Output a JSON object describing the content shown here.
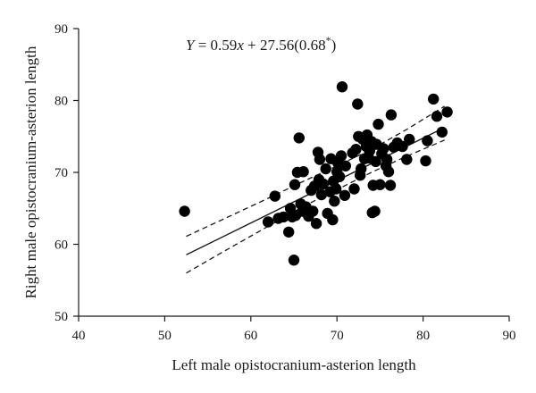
{
  "chart_data": {
    "type": "scatter",
    "xlabel": "Left male opistocranium-asterion length",
    "ylabel": "Right male opistocranium-asterion length",
    "annotation": "Y = 0.59x + 27.56(0.68*)",
    "xlim": [
      40,
      90
    ],
    "ylim": [
      50,
      90
    ],
    "xticks": [
      40,
      50,
      60,
      70,
      80,
      90
    ],
    "yticks": [
      50,
      60,
      70,
      80,
      90
    ],
    "grid": false,
    "regression": {
      "slope": 0.59,
      "intercept": 27.56,
      "x_range": [
        52.5,
        82.5
      ],
      "style": "solid"
    },
    "confidence_band": {
      "upper": [
        [
          52.5,
          61.1
        ],
        [
          57,
          63.6
        ],
        [
          62,
          66.4
        ],
        [
          66,
          68.7
        ],
        [
          70,
          70.9
        ],
        [
          74,
          73.2
        ],
        [
          78,
          75.9
        ],
        [
          82.5,
          79.2
        ]
      ],
      "lower": [
        [
          52.5,
          56.0
        ],
        [
          57,
          59.1
        ],
        [
          62,
          62.5
        ],
        [
          66,
          65.2
        ],
        [
          70,
          67.6
        ],
        [
          74,
          70.0
        ],
        [
          78,
          72.2
        ],
        [
          82.5,
          74.5
        ]
      ],
      "style": "dashed"
    },
    "series": [
      {
        "points": [
          [
            52.3,
            64.6
          ],
          [
            62.0,
            63.1
          ],
          [
            62.8,
            66.7
          ],
          [
            63.2,
            63.6
          ],
          [
            63.8,
            63.8
          ],
          [
            64.4,
            61.7
          ],
          [
            64.6,
            65.0
          ],
          [
            64.8,
            63.8
          ],
          [
            65.0,
            57.8
          ],
          [
            65.2,
            64.0
          ],
          [
            65.1,
            68.3
          ],
          [
            65.4,
            70.0
          ],
          [
            65.6,
            74.8
          ],
          [
            65.8,
            65.6
          ],
          [
            66.0,
            64.6
          ],
          [
            66.1,
            70.1
          ],
          [
            66.4,
            65.2
          ],
          [
            66.7,
            63.9
          ],
          [
            67.0,
            67.5
          ],
          [
            67.2,
            64.6
          ],
          [
            67.4,
            68.1
          ],
          [
            67.6,
            62.9
          ],
          [
            67.8,
            72.8
          ],
          [
            67.9,
            69.0
          ],
          [
            68.0,
            71.8
          ],
          [
            68.2,
            66.9
          ],
          [
            68.4,
            68.4
          ],
          [
            68.7,
            70.5
          ],
          [
            68.9,
            64.3
          ],
          [
            69.2,
            67.3
          ],
          [
            69.3,
            71.9
          ],
          [
            69.5,
            63.4
          ],
          [
            69.6,
            68.8
          ],
          [
            69.7,
            66.0
          ],
          [
            69.9,
            67.7
          ],
          [
            70.0,
            70.1
          ],
          [
            70.1,
            71.3
          ],
          [
            70.3,
            69.4
          ],
          [
            70.5,
            72.3
          ],
          [
            70.6,
            81.9
          ],
          [
            70.9,
            66.8
          ],
          [
            71.0,
            70.9
          ],
          [
            71.8,
            72.7
          ],
          [
            72.0,
            67.7
          ],
          [
            72.2,
            73.2
          ],
          [
            72.4,
            79.5
          ],
          [
            72.5,
            75.0
          ],
          [
            72.7,
            69.6
          ],
          [
            72.8,
            70.5
          ],
          [
            73.0,
            74.6
          ],
          [
            73.2,
            71.9
          ],
          [
            73.4,
            73.6
          ],
          [
            73.5,
            75.2
          ],
          [
            73.7,
            72.0
          ],
          [
            73.8,
            73.0
          ],
          [
            74.0,
            74.3
          ],
          [
            74.1,
            64.4
          ],
          [
            74.2,
            68.2
          ],
          [
            74.4,
            64.6
          ],
          [
            74.5,
            71.5
          ],
          [
            74.6,
            73.9
          ],
          [
            74.8,
            76.7
          ],
          [
            75.0,
            68.3
          ],
          [
            75.2,
            72.6
          ],
          [
            75.4,
            73.3
          ],
          [
            75.7,
            70.9
          ],
          [
            75.8,
            71.8
          ],
          [
            76.0,
            70.1
          ],
          [
            76.2,
            68.2
          ],
          [
            76.3,
            78.0
          ],
          [
            76.6,
            73.5
          ],
          [
            77.0,
            74.1
          ],
          [
            77.6,
            73.6
          ],
          [
            78.1,
            71.8
          ],
          [
            78.4,
            74.6
          ],
          [
            80.3,
            71.6
          ],
          [
            80.5,
            74.4
          ],
          [
            81.2,
            80.2
          ],
          [
            81.6,
            77.8
          ],
          [
            82.2,
            75.6
          ],
          [
            82.8,
            78.4
          ]
        ]
      }
    ]
  }
}
